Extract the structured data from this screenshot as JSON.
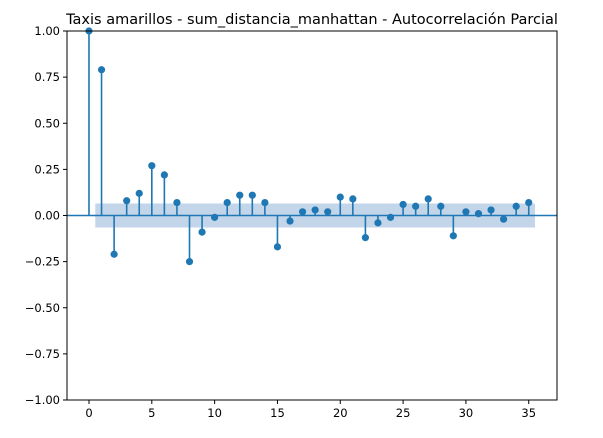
{
  "chart_data": {
    "type": "stem",
    "title": "Taxis amarillos - sum_distancia_manhattan - Autocorrelación Parcial",
    "xlabel": "",
    "ylabel": "",
    "xlim": [
      -1.75,
      37.25
    ],
    "ylim": [
      -1.0,
      1.0
    ],
    "grid": false,
    "legend": "none",
    "x_ticks": [
      0,
      5,
      10,
      15,
      20,
      25,
      30,
      35
    ],
    "x_tick_labels": [
      "0",
      "5",
      "10",
      "15",
      "20",
      "25",
      "30",
      "35"
    ],
    "y_ticks": [
      -1.0,
      -0.75,
      -0.5,
      -0.25,
      0.0,
      0.25,
      0.5,
      0.75,
      1.0
    ],
    "y_tick_labels": [
      "−1.00",
      "−0.75",
      "−0.50",
      "−0.25",
      "0.00",
      "0.25",
      "0.50",
      "0.75",
      "1.00"
    ],
    "lags": [
      0,
      1,
      2,
      3,
      4,
      5,
      6,
      7,
      8,
      9,
      10,
      11,
      12,
      13,
      14,
      15,
      16,
      17,
      18,
      19,
      20,
      21,
      22,
      23,
      24,
      25,
      26,
      27,
      28,
      29,
      30,
      31,
      32,
      33,
      34,
      35
    ],
    "values": [
      1.0,
      0.79,
      -0.21,
      0.08,
      0.12,
      0.27,
      0.22,
      0.07,
      -0.25,
      -0.09,
      -0.01,
      0.07,
      0.11,
      0.11,
      0.07,
      -0.17,
      -0.03,
      0.02,
      0.03,
      0.02,
      0.1,
      0.09,
      -0.12,
      -0.04,
      -0.01,
      0.06,
      0.05,
      0.09,
      0.05,
      -0.11,
      0.02,
      0.01,
      0.03,
      -0.02,
      0.05,
      0.07
    ],
    "confidence_band": {
      "x_range": [
        0.5,
        35.5
      ],
      "lower": -0.065,
      "upper": 0.065
    },
    "colors": {
      "stem": "#1f77b4",
      "marker": "#1f77b4",
      "band": "#c3d6e9",
      "axis": "#000000",
      "zero_line": "#1f77b4"
    }
  }
}
